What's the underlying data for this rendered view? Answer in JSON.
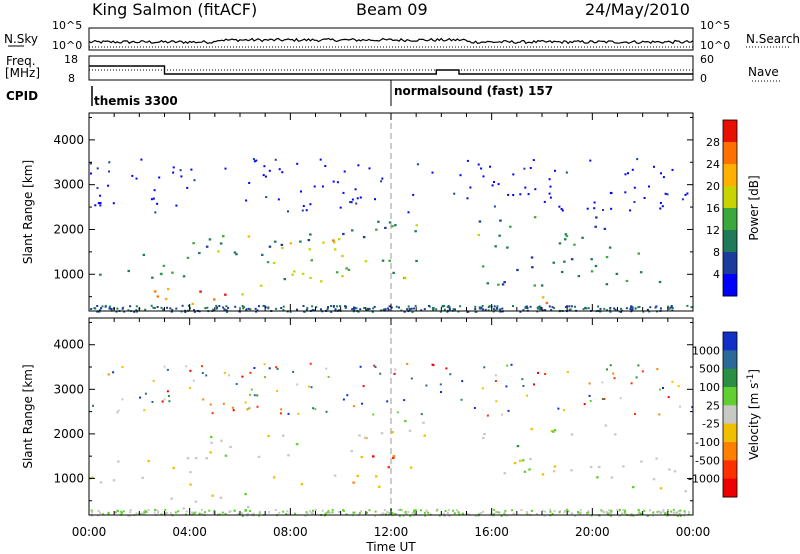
{
  "header": {
    "station": "King Salmon (fitACF)",
    "beam": "Beam 09",
    "date": "24/May/2010"
  },
  "strips": {
    "nsky_label": "N.Sky",
    "nsky_ticks": [
      "10^5",
      "10^0"
    ],
    "nsearch_label": "N.Search",
    "freq_label": "Freq.",
    "freq_unit": "[MHz]",
    "freq_ticks": [
      "18",
      "8"
    ],
    "nave_label": "Nave",
    "nave_ticks": [
      "60",
      "0"
    ],
    "cpid_label": "CPID",
    "modes": [
      {
        "name": "themis 3300",
        "start_hour": 0
      },
      {
        "name": "normalsound (fast) 157",
        "start_hour": 12
      }
    ]
  },
  "chart_data": [
    {
      "type": "heatmap",
      "name": "power",
      "ylabel": "Slant Range [km]",
      "ylim": [
        180,
        4600
      ],
      "yticks": [
        1000,
        2000,
        3000,
        4000
      ],
      "xlim": [
        0,
        24
      ],
      "colorbar": {
        "label": "Power [dB]",
        "ticks": [
          "4",
          "8",
          "12",
          "16",
          "20",
          "24",
          "28"
        ],
        "colors": [
          "#0000ff",
          "#1c3c9c",
          "#1f7a5a",
          "#3aa83a",
          "#c8d400",
          "#ffb000",
          "#ff7000",
          "#e81000"
        ]
      },
      "echo_regions": [
        {
          "t0": 0.0,
          "t1": 4.0,
          "r0": 850,
          "r1": 1500,
          "level": 2
        },
        {
          "t0": 2.5,
          "t1": 7.0,
          "r0": 350,
          "r1": 750,
          "level": 5
        },
        {
          "t0": 4.3,
          "t1": 6.2,
          "r0": 400,
          "r1": 650,
          "level": 7
        },
        {
          "t0": 2.8,
          "t1": 11.0,
          "r0": 1450,
          "r1": 2000,
          "level": 2
        },
        {
          "t0": 5.0,
          "t1": 10.0,
          "r0": 1500,
          "r1": 1900,
          "level": 4
        },
        {
          "t0": 7.5,
          "t1": 9.8,
          "r0": 1550,
          "r1": 1800,
          "level": 5
        },
        {
          "t0": 6.5,
          "t1": 13.5,
          "r0": 750,
          "r1": 1450,
          "level": 3
        },
        {
          "t0": 8.0,
          "t1": 10.5,
          "r0": 800,
          "r1": 1100,
          "level": 4
        },
        {
          "t0": 10.0,
          "t1": 14.0,
          "r0": 1950,
          "r1": 2400,
          "level": 2
        },
        {
          "t0": 11.0,
          "t1": 13.0,
          "r0": 2050,
          "r1": 2300,
          "level": 3
        },
        {
          "t0": 15.0,
          "t1": 21.0,
          "r0": 1600,
          "r1": 2300,
          "level": 2
        },
        {
          "t0": 15.2,
          "t1": 17.0,
          "r0": 1750,
          "r1": 2100,
          "level": 4
        },
        {
          "t0": 15.5,
          "t1": 23.7,
          "r0": 700,
          "r1": 1500,
          "level": 2
        },
        {
          "t0": 16.8,
          "t1": 18.2,
          "r0": 350,
          "r1": 800,
          "level": 5
        }
      ]
    },
    {
      "type": "heatmap",
      "name": "velocity",
      "ylabel": "Slant Range [km]",
      "ylim": [
        180,
        4600
      ],
      "yticks": [
        1000,
        2000,
        3000,
        4000
      ],
      "xlim": [
        0,
        24
      ],
      "xticks": [
        "00:00",
        "04:00",
        "08:00",
        "12:00",
        "16:00",
        "20:00",
        "00:00"
      ],
      "xlabel": "Time UT",
      "colorbar": {
        "label": "Velocity [m s",
        "label_superscript": "-1",
        "label_suffix": "]",
        "ticks": [
          "1000",
          "500",
          "100",
          "25",
          "-25",
          "-100",
          "-500",
          "-1000"
        ],
        "colors": [
          "#1030c8",
          "#2a6a9a",
          "#2a8f44",
          "#60d030",
          "#c8c8c4",
          "#f0c000",
          "#ff8000",
          "#ff3000",
          "#ee0000"
        ]
      },
      "echo_regions": [
        {
          "t0": 0.0,
          "t1": 4.0,
          "r0": 850,
          "r1": 1500,
          "level": 4
        },
        {
          "t0": 2.5,
          "t1": 7.0,
          "r0": 350,
          "r1": 750,
          "level": 4
        },
        {
          "t0": 2.8,
          "t1": 11.0,
          "r0": 1450,
          "r1": 2000,
          "level": 4
        },
        {
          "t0": 7.0,
          "t1": 12.0,
          "r0": 800,
          "r1": 1100,
          "level": 5
        },
        {
          "t0": 10.5,
          "t1": 13.0,
          "r0": 1050,
          "r1": 1600,
          "level": 6
        },
        {
          "t0": 11.2,
          "t1": 12.8,
          "r0": 1200,
          "r1": 1550,
          "level": 7
        },
        {
          "t0": 10.0,
          "t1": 14.0,
          "r0": 1950,
          "r1": 2400,
          "level": 4
        },
        {
          "t0": 15.0,
          "t1": 17.0,
          "r0": 1700,
          "r1": 1950,
          "level": 3
        },
        {
          "t0": 15.5,
          "t1": 21.0,
          "r0": 1900,
          "r1": 2300,
          "level": 4
        },
        {
          "t0": 16.0,
          "t1": 23.8,
          "r0": 700,
          "r1": 1500,
          "level": 4
        }
      ]
    }
  ]
}
